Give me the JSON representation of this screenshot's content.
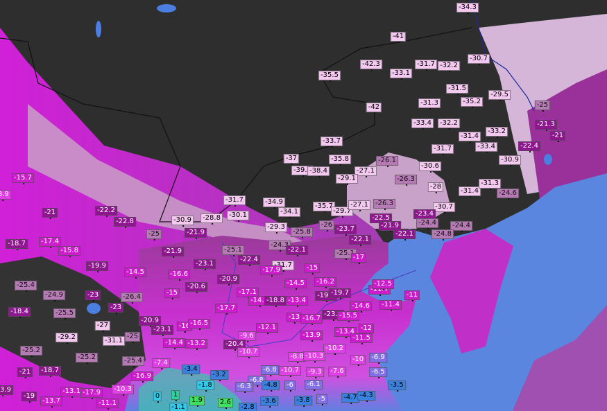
{
  "map": {
    "colors": {
      "land_frozen": "#2e2e2e",
      "sea": "#5b86df",
      "lake": "#4a7ee0",
      "border": "#111111",
      "river": "#1a2a9a"
    },
    "label_color_scale": [
      {
        "max": -27,
        "bg": "#f3c9f0",
        "fg": "#000000"
      },
      {
        "max": -24,
        "bg": "#b67ab4",
        "fg": "#111111"
      },
      {
        "max": -18,
        "bg": "#8e168e",
        "fg": "#ffffff"
      },
      {
        "max": -11,
        "bg": "#cc1ccc",
        "fg": "#ffffff"
      },
      {
        "max": -7,
        "bg": "#e040e6",
        "fg": "#ffffff"
      },
      {
        "max": -5,
        "bg": "#8470e6",
        "fg": "#ffffff"
      },
      {
        "max": -2,
        "bg": "#3b82e0",
        "fg": "#000000"
      },
      {
        "max": 0,
        "bg": "#34c8e8",
        "fg": "#000000"
      },
      {
        "max": 1.5,
        "bg": "#30d0a0",
        "fg": "#000000"
      },
      {
        "max": 99,
        "bg": "#40e060",
        "fg": "#000000"
      }
    ],
    "temperatures": [
      "-34.3",
      "-41",
      "-42.3",
      "-35.5",
      "-33.1",
      "-31.7",
      "-32.2",
      "-30.7",
      "-31.5",
      "-29.5",
      "-31.3",
      "-35.2",
      "-42",
      "-33.4",
      "-32.2",
      "-31.4",
      "-33.2",
      "-33.4",
      "-31.7",
      "-25",
      "-21.3",
      "-21",
      "-22.4",
      "-33.7",
      "-37",
      "-35.8",
      "-26.1",
      "-30.6",
      "-30.9",
      "-39.4",
      "-38.4",
      "-27.1",
      "-29.1",
      "-26.3",
      "-28",
      "-31.4",
      "-31.3",
      "-24.6",
      "-31.7",
      "-34.9",
      "-34.1",
      "-35.7",
      "-29.7",
      "-27.1",
      "-26.3",
      "-30.7",
      "-23.4",
      "-22.5",
      "-21.9",
      "-24.4",
      "-24.4",
      "-24.8",
      "-22.1",
      "-22.1",
      "-23.7",
      "-26",
      "-25.8",
      "-29.3",
      "-30.1",
      "-28.8",
      "-30.9",
      "-21.9",
      "-25",
      "-15.7",
      "-8.9",
      "-21",
      "-22.2",
      "-22.8",
      "-18.7",
      "-17.4",
      "-15.8",
      "-19.9",
      "-14.5",
      "-21.9",
      "-16.6",
      "-23.1",
      "-20.6",
      "-15",
      "-25.4",
      "-24.9",
      "-23",
      "-26.4",
      "-23",
      "-18.4",
      "-25.5",
      "-27",
      "-29.2",
      "-31.1",
      "-25",
      "-20.9",
      "-23.1",
      "-16",
      "-16.5",
      "-14.4",
      "-13.2",
      "-25.2",
      "-25.2",
      "-25.4",
      "-7.4",
      "-3.4",
      "-21",
      "-18.7",
      "-16.9",
      "-23.9",
      "-19",
      "-13.1",
      "-17.9",
      "-10.3",
      "-13.7",
      "-11.1",
      "0",
      "1",
      "1.9",
      "-1.8",
      "-1.1",
      "-24.3",
      "-22.1",
      "-25.1",
      "-22.4",
      "-31.7",
      "-17.9",
      "-15",
      "-20.9",
      "-14.5",
      "-16.2",
      "-17.1",
      "-19.1",
      "-19.7",
      "-14.7",
      "-18.8",
      "-13.4",
      "-17.7",
      "-13",
      "-16.7",
      "-23.4",
      "-15.5",
      "-12.1",
      "-13.9",
      "-9.6",
      "-20.4",
      "-10.7",
      "-10.2",
      "-8.8",
      "-10.3",
      "-6.8",
      "-10.7",
      "-9.3",
      "-7.6",
      "-6.8",
      "-6.3",
      "-4.8",
      "-6",
      "-6.1",
      "-3.2",
      "-5",
      "-3.8",
      "-3.6",
      "-2.8",
      "2.6",
      "-14.6",
      "-11.7",
      "-12.5",
      "-11.4",
      "-12",
      "-13.4",
      "-11.5",
      "-10",
      "-6.9",
      "-6.5",
      "-4.7",
      "-4.3",
      "-3.5",
      "-25.1",
      "-17",
      "-11"
    ]
  }
}
